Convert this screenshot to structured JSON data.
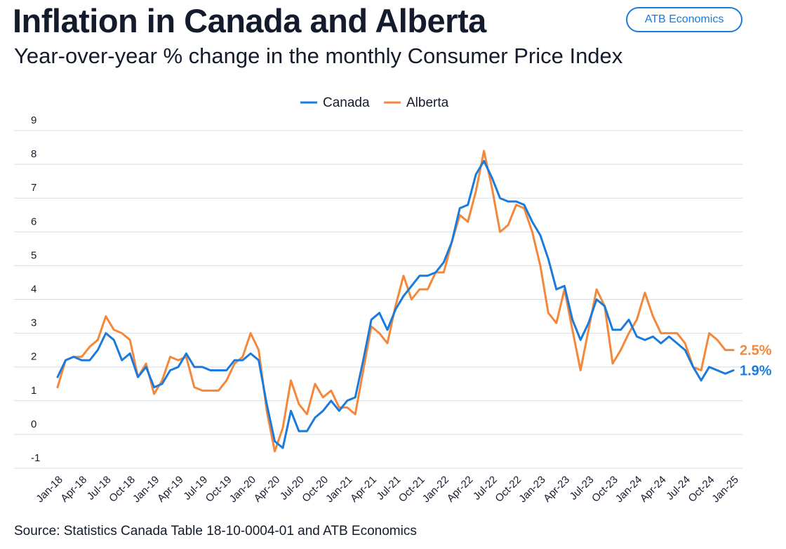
{
  "header": {
    "title": "Inflation in Canada and Alberta",
    "subtitle": "Year-over-year % change in the monthly Consumer Price Index",
    "brand": "ATB Economics"
  },
  "footer": {
    "source": "Source: Statistics Canada Table 18-10-0004-01 and ATB Economics"
  },
  "colors": {
    "canada": "#1a7bdc",
    "alberta": "#f5873a",
    "grid": "#d9dde3",
    "text": "#141b2d"
  },
  "chart_data": {
    "type": "line",
    "ylim": [
      -1,
      9
    ],
    "yticks": [
      "-1",
      "0",
      "1",
      "2",
      "3",
      "4",
      "5",
      "6",
      "7",
      "8",
      "9"
    ],
    "grid": true,
    "legend": "top-center",
    "x": [
      "Jan-18",
      "Feb-18",
      "Mar-18",
      "Apr-18",
      "May-18",
      "Jun-18",
      "Jul-18",
      "Aug-18",
      "Sep-18",
      "Oct-18",
      "Nov-18",
      "Dec-18",
      "Jan-19",
      "Feb-19",
      "Mar-19",
      "Apr-19",
      "May-19",
      "Jun-19",
      "Jul-19",
      "Aug-19",
      "Sep-19",
      "Oct-19",
      "Nov-19",
      "Dec-19",
      "Jan-20",
      "Feb-20",
      "Mar-20",
      "Apr-20",
      "May-20",
      "Jun-20",
      "Jul-20",
      "Aug-20",
      "Sep-20",
      "Oct-20",
      "Nov-20",
      "Dec-20",
      "Jan-21",
      "Feb-21",
      "Mar-21",
      "Apr-21",
      "May-21",
      "Jun-21",
      "Jul-21",
      "Aug-21",
      "Sep-21",
      "Oct-21",
      "Nov-21",
      "Dec-21",
      "Jan-22",
      "Feb-22",
      "Mar-22",
      "Apr-22",
      "May-22",
      "Jun-22",
      "Jul-22",
      "Aug-22",
      "Sep-22",
      "Oct-22",
      "Nov-22",
      "Dec-22",
      "Jan-23",
      "Feb-23",
      "Mar-23",
      "Apr-23",
      "May-23",
      "Jun-23",
      "Jul-23",
      "Aug-23",
      "Sep-23",
      "Oct-23",
      "Nov-23",
      "Dec-23",
      "Jan-24",
      "Feb-24",
      "Mar-24",
      "Apr-24",
      "May-24",
      "Jun-24",
      "Jul-24",
      "Aug-24",
      "Sep-24",
      "Oct-24",
      "Nov-24",
      "Dec-24",
      "Jan-25"
    ],
    "xtick_labels": [
      "Jan-18",
      "Apr-18",
      "Jul-18",
      "Oct-18",
      "Jan-19",
      "Apr-19",
      "Jul-19",
      "Oct-19",
      "Jan-20",
      "Apr-20",
      "Jul-20",
      "Oct-20",
      "Jan-21",
      "Apr-21",
      "Jul-21",
      "Oct-21",
      "Jan-22",
      "Apr-22",
      "Jul-22",
      "Oct-22",
      "Jan-23",
      "Apr-23",
      "Jul-23",
      "Oct-23",
      "Jan-24",
      "Apr-24",
      "Jul-24",
      "Oct-24",
      "Jan-25"
    ],
    "series": [
      {
        "name": "Canada",
        "end_label": "1.9%",
        "values": [
          1.7,
          2.2,
          2.3,
          2.2,
          2.2,
          2.5,
          3.0,
          2.8,
          2.2,
          2.4,
          1.7,
          2.0,
          1.4,
          1.5,
          1.9,
          2.0,
          2.4,
          2.0,
          2.0,
          1.9,
          1.9,
          1.9,
          2.2,
          2.2,
          2.4,
          2.2,
          0.9,
          -0.2,
          -0.4,
          0.7,
          0.1,
          0.1,
          0.5,
          0.7,
          1.0,
          0.7,
          1.0,
          1.1,
          2.2,
          3.4,
          3.6,
          3.1,
          3.7,
          4.1,
          4.4,
          4.7,
          4.7,
          4.8,
          5.1,
          5.7,
          6.7,
          6.8,
          7.7,
          8.1,
          7.6,
          7.0,
          6.9,
          6.9,
          6.8,
          6.3,
          5.9,
          5.2,
          4.3,
          4.4,
          3.4,
          2.8,
          3.3,
          4.0,
          3.8,
          3.1,
          3.1,
          3.4,
          2.9,
          2.8,
          2.9,
          2.7,
          2.9,
          2.7,
          2.5,
          2.0,
          1.6,
          2.0,
          1.9,
          1.8,
          1.9
        ]
      },
      {
        "name": "Alberta",
        "end_label": "2.5%",
        "values": [
          1.4,
          2.2,
          2.3,
          2.3,
          2.6,
          2.8,
          3.5,
          3.1,
          3.0,
          2.8,
          1.7,
          2.1,
          1.2,
          1.6,
          2.3,
          2.2,
          2.3,
          1.4,
          1.3,
          1.3,
          1.3,
          1.6,
          2.1,
          2.3,
          3.0,
          2.5,
          0.7,
          -0.5,
          0.2,
          1.6,
          0.9,
          0.6,
          1.5,
          1.1,
          1.3,
          0.8,
          0.8,
          0.6,
          1.9,
          3.2,
          3.0,
          2.7,
          3.8,
          4.7,
          4.0,
          4.3,
          4.3,
          4.8,
          4.8,
          5.7,
          6.5,
          6.3,
          7.2,
          8.4,
          7.3,
          6.0,
          6.2,
          6.8,
          6.7,
          6.0,
          5.0,
          3.6,
          3.3,
          4.3,
          3.1,
          1.9,
          3.1,
          4.3,
          3.8,
          2.1,
          2.5,
          3.0,
          3.4,
          4.2,
          3.5,
          3.0,
          3.0,
          3.0,
          2.7,
          2.0,
          1.9,
          3.0,
          2.8,
          2.5,
          2.5
        ]
      }
    ]
  }
}
